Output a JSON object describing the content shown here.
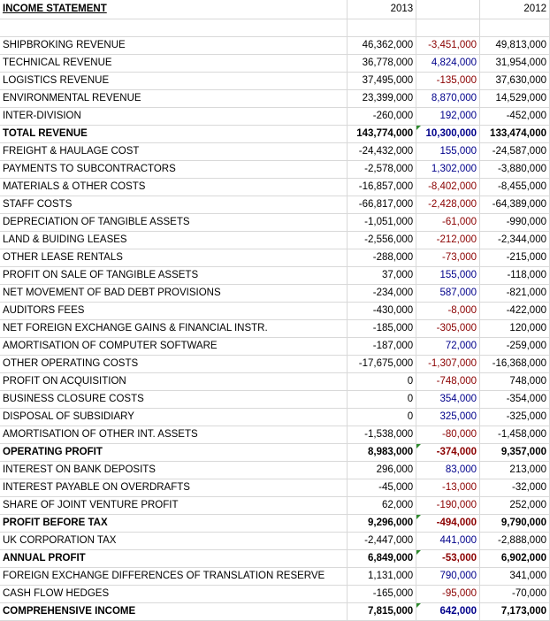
{
  "header": {
    "title": "INCOME STATEMENT",
    "col_2013": "2013",
    "col_2012": "2012"
  },
  "colors": {
    "positive_diff": "#00008b",
    "negative_diff": "#8b0000",
    "comment_marker": "#2e8b2e"
  },
  "rows": [
    {
      "label": "SHIPBROKING REVENUE",
      "y2013": "46,362,000",
      "diff": "-3,451,000",
      "y2012": "49,813,000",
      "bold": false,
      "sign": "neg",
      "marker": false
    },
    {
      "label": "TECHNICAL REVENUE",
      "y2013": "36,778,000",
      "diff": "4,824,000",
      "y2012": "31,954,000",
      "bold": false,
      "sign": "pos",
      "marker": false
    },
    {
      "label": "LOGISTICS REVENUE",
      "y2013": "37,495,000",
      "diff": "-135,000",
      "y2012": "37,630,000",
      "bold": false,
      "sign": "neg",
      "marker": false
    },
    {
      "label": "ENVIRONMENTAL REVENUE",
      "y2013": "23,399,000",
      "diff": "8,870,000",
      "y2012": "14,529,000",
      "bold": false,
      "sign": "pos",
      "marker": false
    },
    {
      "label": "INTER-DIVISION",
      "y2013": "-260,000",
      "diff": "192,000",
      "y2012": "-452,000",
      "bold": false,
      "sign": "pos",
      "marker": false
    },
    {
      "label": "TOTAL REVENUE",
      "y2013": "143,774,000",
      "diff": "10,300,000",
      "y2012": "133,474,000",
      "bold": true,
      "sign": "pos",
      "marker": true
    },
    {
      "label": "FREIGHT & HAULAGE COST",
      "y2013": "-24,432,000",
      "diff": "155,000",
      "y2012": "-24,587,000",
      "bold": false,
      "sign": "pos",
      "marker": false
    },
    {
      "label": "PAYMENTS TO SUBCONTRACTORS",
      "y2013": "-2,578,000",
      "diff": "1,302,000",
      "y2012": "-3,880,000",
      "bold": false,
      "sign": "pos",
      "marker": false
    },
    {
      "label": "MATERIALS & OTHER COSTS",
      "y2013": "-16,857,000",
      "diff": "-8,402,000",
      "y2012": "-8,455,000",
      "bold": false,
      "sign": "neg",
      "marker": false
    },
    {
      "label": "STAFF COSTS",
      "y2013": "-66,817,000",
      "diff": "-2,428,000",
      "y2012": "-64,389,000",
      "bold": false,
      "sign": "neg",
      "marker": false
    },
    {
      "label": "DEPRECIATION OF TANGIBLE ASSETS",
      "y2013": "-1,051,000",
      "diff": "-61,000",
      "y2012": "-990,000",
      "bold": false,
      "sign": "neg",
      "marker": false
    },
    {
      "label": "LAND & BUIDING LEASES",
      "y2013": "-2,556,000",
      "diff": "-212,000",
      "y2012": "-2,344,000",
      "bold": false,
      "sign": "neg",
      "marker": false
    },
    {
      "label": "OTHER LEASE RENTALS",
      "y2013": "-288,000",
      "diff": "-73,000",
      "y2012": "-215,000",
      "bold": false,
      "sign": "neg",
      "marker": false
    },
    {
      "label": "PROFIT ON SALE OF TANGIBLE ASSETS",
      "y2013": "37,000",
      "diff": "155,000",
      "y2012": "-118,000",
      "bold": false,
      "sign": "pos",
      "marker": false
    },
    {
      "label": "NET MOVEMENT OF BAD DEBT PROVISIONS",
      "y2013": "-234,000",
      "diff": "587,000",
      "y2012": "-821,000",
      "bold": false,
      "sign": "pos",
      "marker": false
    },
    {
      "label": "AUDITORS FEES",
      "y2013": "-430,000",
      "diff": "-8,000",
      "y2012": "-422,000",
      "bold": false,
      "sign": "neg",
      "marker": false
    },
    {
      "label": "NET FOREIGN EXCHANGE GAINS & FINANCIAL INSTR.",
      "y2013": "-185,000",
      "diff": "-305,000",
      "y2012": "120,000",
      "bold": false,
      "sign": "neg",
      "marker": false
    },
    {
      "label": "AMORTISATION OF COMPUTER SOFTWARE",
      "y2013": "-187,000",
      "diff": "72,000",
      "y2012": "-259,000",
      "bold": false,
      "sign": "pos",
      "marker": false
    },
    {
      "label": "OTHER OPERATING COSTS",
      "y2013": "-17,675,000",
      "diff": "-1,307,000",
      "y2012": "-16,368,000",
      "bold": false,
      "sign": "neg",
      "marker": false
    },
    {
      "label": "PROFIT ON ACQUISITION",
      "y2013": "0",
      "diff": "-748,000",
      "y2012": "748,000",
      "bold": false,
      "sign": "neg",
      "marker": false
    },
    {
      "label": "BUSINESS CLOSURE COSTS",
      "y2013": "0",
      "diff": "354,000",
      "y2012": "-354,000",
      "bold": false,
      "sign": "pos",
      "marker": false
    },
    {
      "label": "DISPOSAL OF SUBSIDIARY",
      "y2013": "0",
      "diff": "325,000",
      "y2012": "-325,000",
      "bold": false,
      "sign": "pos",
      "marker": false
    },
    {
      "label": "AMORTISATION OF OTHER INT. ASSETS",
      "y2013": "-1,538,000",
      "diff": "-80,000",
      "y2012": "-1,458,000",
      "bold": false,
      "sign": "neg",
      "marker": false
    },
    {
      "label": "OPERATING PROFIT",
      "y2013": "8,983,000",
      "diff": "-374,000",
      "y2012": "9,357,000",
      "bold": true,
      "sign": "neg",
      "marker": true
    },
    {
      "label": "INTEREST ON BANK DEPOSITS",
      "y2013": "296,000",
      "diff": "83,000",
      "y2012": "213,000",
      "bold": false,
      "sign": "pos",
      "marker": false
    },
    {
      "label": "INTEREST PAYABLE ON OVERDRAFTS",
      "y2013": "-45,000",
      "diff": "-13,000",
      "y2012": "-32,000",
      "bold": false,
      "sign": "neg",
      "marker": false
    },
    {
      "label": "SHARE OF JOINT VENTURE PROFIT",
      "y2013": "62,000",
      "diff": "-190,000",
      "y2012": "252,000",
      "bold": false,
      "sign": "neg",
      "marker": false
    },
    {
      "label": "PROFIT BEFORE TAX",
      "y2013": "9,296,000",
      "diff": "-494,000",
      "y2012": "9,790,000",
      "bold": true,
      "sign": "neg",
      "marker": true
    },
    {
      "label": "UK CORPORATION TAX",
      "y2013": "-2,447,000",
      "diff": "441,000",
      "y2012": "-2,888,000",
      "bold": false,
      "sign": "pos",
      "marker": false
    },
    {
      "label": "ANNUAL PROFIT",
      "y2013": "6,849,000",
      "diff": "-53,000",
      "y2012": "6,902,000",
      "bold": true,
      "sign": "neg",
      "marker": true
    },
    {
      "label": "FOREIGN EXCHANGE DIFFERENCES OF TRANSLATION RESERVE",
      "y2013": "1,131,000",
      "diff": "790,000",
      "y2012": "341,000",
      "bold": false,
      "sign": "pos",
      "marker": false
    },
    {
      "label": "CASH FLOW HEDGES",
      "y2013": "-165,000",
      "diff": "-95,000",
      "y2012": "-70,000",
      "bold": false,
      "sign": "neg",
      "marker": false
    },
    {
      "label": "COMPREHENSIVE INCOME",
      "y2013": "7,815,000",
      "diff": "642,000",
      "y2012": "7,173,000",
      "bold": true,
      "sign": "pos",
      "marker": true
    }
  ]
}
